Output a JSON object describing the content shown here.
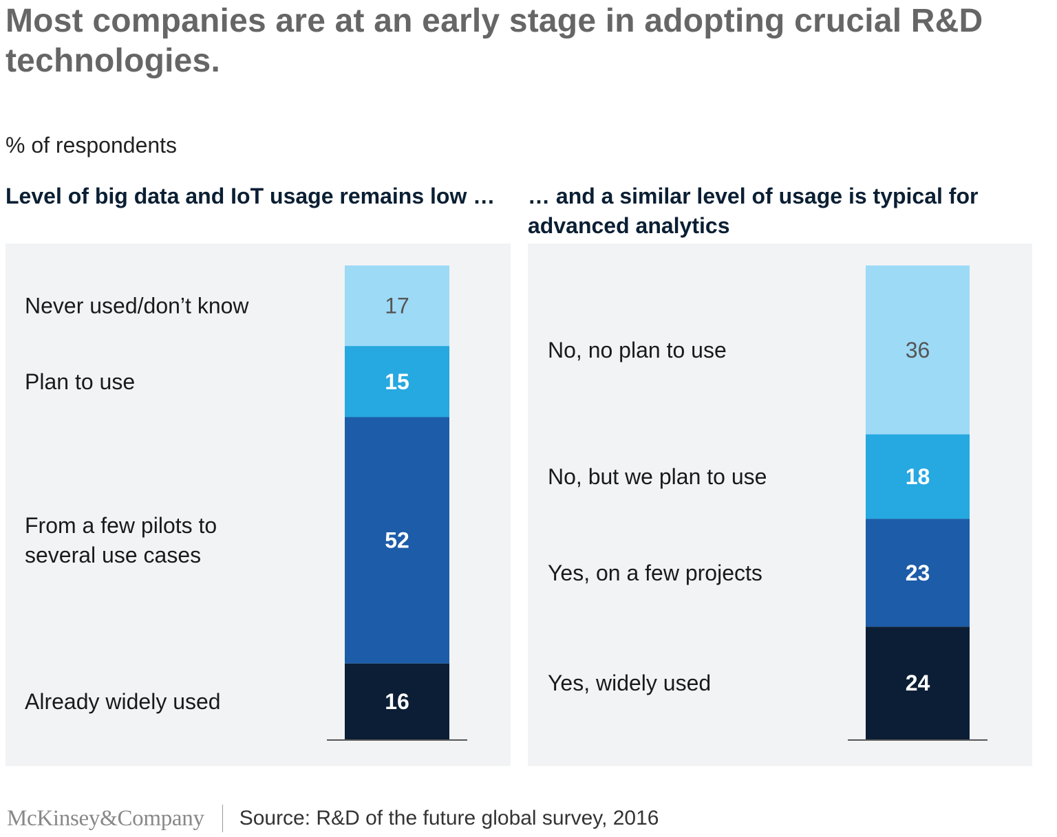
{
  "title": "Most companies are at an early stage in adopting crucial R&D technologies.",
  "subtitle": "% of respondents",
  "colors": {
    "level1": "#9ddaf6",
    "level2": "#26a8e0",
    "level3": "#1d5ca8",
    "level4": "#0b1e35",
    "text_light_bar": "#555555",
    "text_dark_bar": "#ffffff",
    "panel_bg": "#f2f3f5"
  },
  "chart_data": [
    {
      "type": "bar",
      "stacked": true,
      "title": "Level of big data and IoT usage remains low …",
      "unit": "% of respondents",
      "segments": [
        {
          "label": "Never used/don’t know",
          "value": 17
        },
        {
          "label": "Plan to use",
          "value": 15
        },
        {
          "label": "From a few pilots to several use cases",
          "value": 52
        },
        {
          "label": "Already widely used",
          "value": 16
        }
      ]
    },
    {
      "type": "bar",
      "stacked": true,
      "title": "… and a similar level of usage is typical for advanced analytics",
      "unit": "% of respondents",
      "segments": [
        {
          "label": "No, no plan to use",
          "value": 36
        },
        {
          "label": "No, but we plan to use",
          "value": 18
        },
        {
          "label": "Yes, on a few projects",
          "value": 23
        },
        {
          "label": "Yes, widely used",
          "value": 24
        }
      ]
    }
  ],
  "footer": {
    "logo": "McKinsey&Company",
    "source": "Source: R&D of the future global survey, 2016"
  }
}
